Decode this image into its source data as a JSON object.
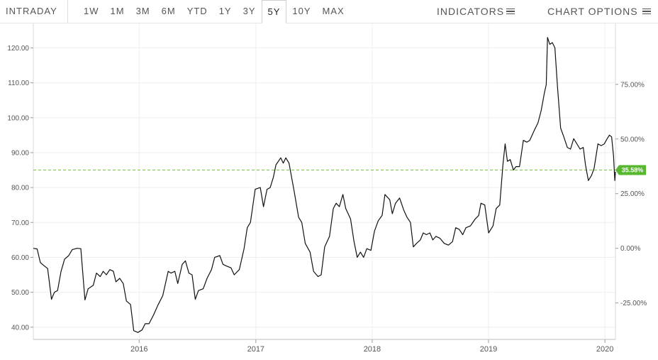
{
  "toolbar": {
    "intraday_label": "INTRADAY",
    "ranges": [
      "1W",
      "1M",
      "3M",
      "6M",
      "YTD",
      "1Y",
      "3Y",
      "5Y",
      "10Y",
      "MAX"
    ],
    "active_range": "5Y",
    "indicators_label": "INDICATORS",
    "chart_options_label": "CHART OPTIONS",
    "menu_icon": "hamburger-icon"
  },
  "chart_data": {
    "type": "line",
    "title": "",
    "xlabel": "",
    "ylabel": "",
    "x_ticks": [
      "2016",
      "2017",
      "2018",
      "2019",
      "2020"
    ],
    "y_ticks": [
      "40.00",
      "50.00",
      "60.00",
      "70.00",
      "80.00",
      "90.00",
      "100.00",
      "110.00",
      "120.00"
    ],
    "y_right_ticks": [
      "-25.00%",
      "0.00%",
      "25.00%",
      "50.00%",
      "75.00%"
    ],
    "xlim": [
      "2015-02-03",
      "2020-02-03"
    ],
    "ylim": [
      36.5,
      127
    ],
    "grid": true,
    "reference_line": {
      "value": 85,
      "color": "#7cc242"
    },
    "current_change_badge": {
      "text": "35.58%",
      "color": "#57b82f"
    },
    "line_color": "#111111",
    "series": [
      {
        "points": [
          [
            "2015-02-03",
            62.6
          ],
          [
            "2015-02-15",
            62.4
          ],
          [
            "2015-02-25",
            58.5
          ],
          [
            "2015-03-10",
            57.5
          ],
          [
            "2015-03-20",
            56.8
          ],
          [
            "2015-04-01",
            48.0
          ],
          [
            "2015-04-10",
            50.0
          ],
          [
            "2015-04-20",
            50.5
          ],
          [
            "2015-05-01",
            56.0
          ],
          [
            "2015-05-12",
            59.5
          ],
          [
            "2015-05-25",
            60.5
          ],
          [
            "2015-06-05",
            62.2
          ],
          [
            "2015-06-20",
            62.6
          ],
          [
            "2015-07-02",
            62.5
          ],
          [
            "2015-07-15",
            47.8
          ],
          [
            "2015-07-25",
            51.0
          ],
          [
            "2015-08-10",
            52.0
          ],
          [
            "2015-08-20",
            55.5
          ],
          [
            "2015-09-01",
            54.5
          ],
          [
            "2015-09-10",
            56.0
          ],
          [
            "2015-09-20",
            55.0
          ],
          [
            "2015-10-01",
            56.5
          ],
          [
            "2015-10-12",
            56.0
          ],
          [
            "2015-10-20",
            53.0
          ],
          [
            "2015-11-01",
            54.0
          ],
          [
            "2015-11-12",
            52.5
          ],
          [
            "2015-11-22",
            47.5
          ],
          [
            "2015-12-05",
            46.5
          ],
          [
            "2015-12-15",
            39.0
          ],
          [
            "2015-12-28",
            38.5
          ],
          [
            "2016-01-10",
            39.2
          ],
          [
            "2016-01-20",
            41.0
          ],
          [
            "2016-02-01",
            41.0
          ],
          [
            "2016-02-15",
            43.5
          ],
          [
            "2016-03-01",
            46.5
          ],
          [
            "2016-03-15",
            49.0
          ],
          [
            "2016-04-01",
            56.0
          ],
          [
            "2016-04-10",
            55.5
          ],
          [
            "2016-04-22",
            56.0
          ],
          [
            "2016-05-01",
            52.5
          ],
          [
            "2016-05-15",
            58.0
          ],
          [
            "2016-05-25",
            59.0
          ],
          [
            "2016-06-05",
            55.5
          ],
          [
            "2016-06-15",
            55.0
          ],
          [
            "2016-06-25",
            48.0
          ],
          [
            "2016-07-05",
            50.5
          ],
          [
            "2016-07-20",
            51.0
          ],
          [
            "2016-08-01",
            54.0
          ],
          [
            "2016-08-15",
            56.5
          ],
          [
            "2016-08-25",
            60.0
          ],
          [
            "2016-09-10",
            60.5
          ],
          [
            "2016-09-20",
            58.0
          ],
          [
            "2016-10-01",
            57.5
          ],
          [
            "2016-10-15",
            57.0
          ],
          [
            "2016-10-25",
            55.0
          ],
          [
            "2016-11-10",
            56.5
          ],
          [
            "2016-11-25",
            62.5
          ],
          [
            "2016-12-05",
            68.5
          ],
          [
            "2016-12-15",
            70.0
          ],
          [
            "2016-12-30",
            79.5
          ],
          [
            "2017-01-15",
            80.0
          ],
          [
            "2017-01-25",
            74.5
          ],
          [
            "2017-02-05",
            79.5
          ],
          [
            "2017-02-15",
            80.0
          ],
          [
            "2017-02-25",
            83.0
          ],
          [
            "2017-03-05",
            86.5
          ],
          [
            "2017-03-20",
            88.5
          ],
          [
            "2017-03-28",
            87.0
          ],
          [
            "2017-04-05",
            88.5
          ],
          [
            "2017-04-15",
            87.0
          ],
          [
            "2017-05-01",
            79.0
          ],
          [
            "2017-05-15",
            71.5
          ],
          [
            "2017-05-25",
            70.0
          ],
          [
            "2017-06-05",
            64.0
          ],
          [
            "2017-06-20",
            61.5
          ],
          [
            "2017-07-01",
            56.0
          ],
          [
            "2017-07-15",
            54.5
          ],
          [
            "2017-07-25",
            55.0
          ],
          [
            "2017-08-05",
            63.0
          ],
          [
            "2017-08-20",
            66.0
          ],
          [
            "2017-09-01",
            74.0
          ],
          [
            "2017-09-10",
            75.5
          ],
          [
            "2017-09-20",
            74.5
          ],
          [
            "2017-10-01",
            78.0
          ],
          [
            "2017-10-10",
            74.0
          ],
          [
            "2017-10-25",
            71.0
          ],
          [
            "2017-11-05",
            64.5
          ],
          [
            "2017-11-15",
            60.0
          ],
          [
            "2017-11-25",
            61.5
          ],
          [
            "2017-12-05",
            60.0
          ],
          [
            "2017-12-15",
            62.5
          ],
          [
            "2017-12-28",
            62.0
          ],
          [
            "2018-01-08",
            67.5
          ],
          [
            "2018-01-20",
            70.5
          ],
          [
            "2018-02-01",
            72.0
          ],
          [
            "2018-02-10",
            78.0
          ],
          [
            "2018-02-25",
            76.5
          ],
          [
            "2018-03-05",
            72.5
          ],
          [
            "2018-03-15",
            75.5
          ],
          [
            "2018-03-28",
            77.0
          ],
          [
            "2018-04-10",
            73.5
          ],
          [
            "2018-04-20",
            71.5
          ],
          [
            "2018-05-01",
            70.0
          ],
          [
            "2018-05-10",
            63.0
          ],
          [
            "2018-05-20",
            64.0
          ],
          [
            "2018-06-01",
            65.0
          ],
          [
            "2018-06-10",
            67.0
          ],
          [
            "2018-06-20",
            66.5
          ],
          [
            "2018-07-01",
            67.0
          ],
          [
            "2018-07-10",
            65.0
          ],
          [
            "2018-07-20",
            66.0
          ],
          [
            "2018-08-01",
            65.5
          ],
          [
            "2018-08-15",
            64.0
          ],
          [
            "2018-08-28",
            63.5
          ],
          [
            "2018-09-10",
            64.5
          ],
          [
            "2018-09-20",
            68.5
          ],
          [
            "2018-10-01",
            68.0
          ],
          [
            "2018-10-12",
            66.5
          ],
          [
            "2018-10-22",
            68.5
          ],
          [
            "2018-11-05",
            69.0
          ],
          [
            "2018-11-20",
            71.0
          ],
          [
            "2018-12-01",
            72.0
          ],
          [
            "2018-12-08",
            75.5
          ],
          [
            "2018-12-20",
            75.0
          ],
          [
            "2019-01-01",
            67.0
          ],
          [
            "2019-01-15",
            69.0
          ],
          [
            "2019-01-25",
            74.0
          ],
          [
            "2019-02-05",
            75.0
          ],
          [
            "2019-02-15",
            86.5
          ],
          [
            "2019-02-22",
            92.5
          ],
          [
            "2019-03-01",
            87.5
          ],
          [
            "2019-03-10",
            88.0
          ],
          [
            "2019-03-20",
            85.0
          ],
          [
            "2019-03-28",
            86.0
          ],
          [
            "2019-04-08",
            86.0
          ],
          [
            "2019-04-20",
            93.5
          ],
          [
            "2019-05-01",
            93.0
          ],
          [
            "2019-05-10",
            93.5
          ],
          [
            "2019-05-25",
            96.5
          ],
          [
            "2019-06-05",
            98.5
          ],
          [
            "2019-06-15",
            102.0
          ],
          [
            "2019-06-25",
            107.0
          ],
          [
            "2019-07-01",
            109.5
          ],
          [
            "2019-07-05",
            123.0
          ],
          [
            "2019-07-12",
            121.0
          ],
          [
            "2019-07-20",
            121.5
          ],
          [
            "2019-07-28",
            120.0
          ],
          [
            "2019-08-05",
            109.0
          ],
          [
            "2019-08-15",
            97.0
          ],
          [
            "2019-08-25",
            94.5
          ],
          [
            "2019-09-05",
            91.5
          ],
          [
            "2019-09-15",
            91.0
          ],
          [
            "2019-09-25",
            94.0
          ],
          [
            "2019-10-05",
            92.5
          ],
          [
            "2019-10-15",
            91.0
          ],
          [
            "2019-10-25",
            91.5
          ],
          [
            "2019-11-01",
            86.5
          ],
          [
            "2019-11-10",
            82.0
          ],
          [
            "2019-11-20",
            83.5
          ],
          [
            "2019-11-28",
            85.5
          ],
          [
            "2019-12-10",
            92.5
          ],
          [
            "2019-12-20",
            92.0
          ],
          [
            "2019-12-30",
            92.5
          ],
          [
            "2020-01-08",
            94.0
          ],
          [
            "2020-01-15",
            95.0
          ],
          [
            "2020-01-22",
            94.5
          ],
          [
            "2020-01-28",
            89.0
          ],
          [
            "2020-02-01",
            82.0
          ],
          [
            "2020-02-03",
            84.5
          ]
        ]
      }
    ]
  }
}
